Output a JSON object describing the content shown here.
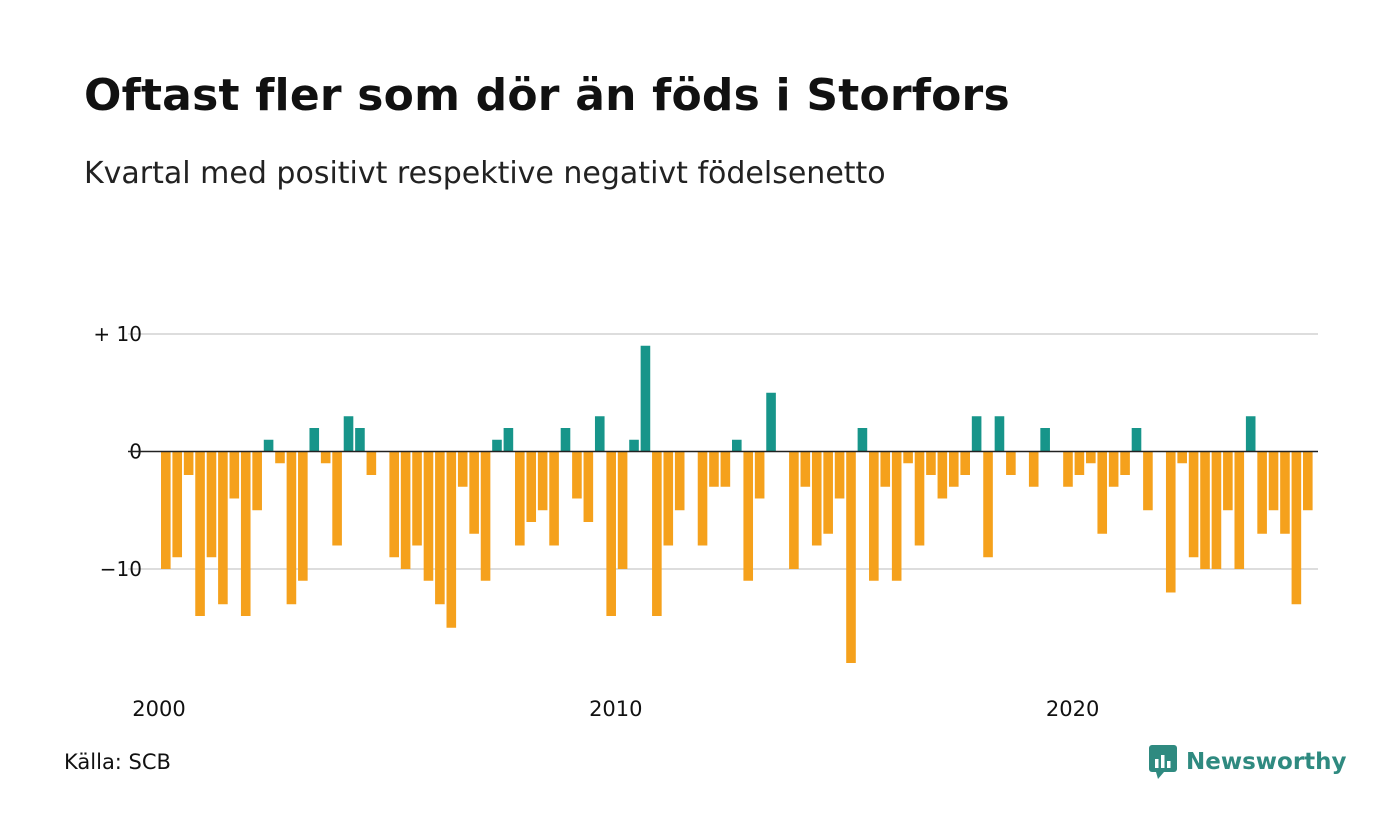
{
  "title": "Oftast fler som dör än föds i Storfors",
  "subtitle": "Kvartal med positivt respektive negativt födelsenetto",
  "source": "Källa: SCB",
  "brand": "Newsworthy",
  "colors": {
    "positive": "#17958a",
    "negative": "#f5a11c",
    "gridline": "#dddddd",
    "zeroline": "#222222",
    "brand": "#2f8a80"
  },
  "chart_data": {
    "type": "bar",
    "x_start": "2000 Q1",
    "x_ticks": [
      {
        "label": "2000",
        "index": 0
      },
      {
        "label": "2010",
        "index": 40
      },
      {
        "label": "2020",
        "index": 80
      }
    ],
    "y_ticks": [
      {
        "label": "+ 10",
        "value": 10
      },
      {
        "label": "0",
        "value": 0
      },
      {
        "label": "−10",
        "value": -10
      }
    ],
    "ylim": [
      -19,
      10
    ],
    "grid": true,
    "values": [
      -10,
      -9,
      -2,
      -14,
      -9,
      -13,
      -4,
      -14,
      -5,
      1,
      -1,
      -13,
      -11,
      2,
      -1,
      -8,
      3,
      2,
      -2,
      0,
      -9,
      -10,
      -8,
      -11,
      -13,
      -15,
      -3,
      -7,
      -11,
      1,
      2,
      -8,
      -6,
      -5,
      -8,
      2,
      -4,
      -6,
      3,
      -14,
      -10,
      1,
      9,
      -14,
      -8,
      -5,
      0,
      -8,
      -3,
      -3,
      1,
      -11,
      -4,
      5,
      0,
      -10,
      -3,
      -8,
      -7,
      -4,
      -18,
      2,
      -11,
      -3,
      -11,
      -1,
      -8,
      -2,
      -4,
      -3,
      -2,
      3,
      -9,
      3,
      -2,
      0,
      -3,
      2,
      0,
      -3,
      -2,
      -1,
      -7,
      -3,
      -2,
      2,
      -5,
      0,
      -12,
      -1,
      -9,
      -10,
      -10,
      -5,
      -10,
      3,
      -7,
      -5,
      -7,
      -13,
      -5
    ]
  }
}
